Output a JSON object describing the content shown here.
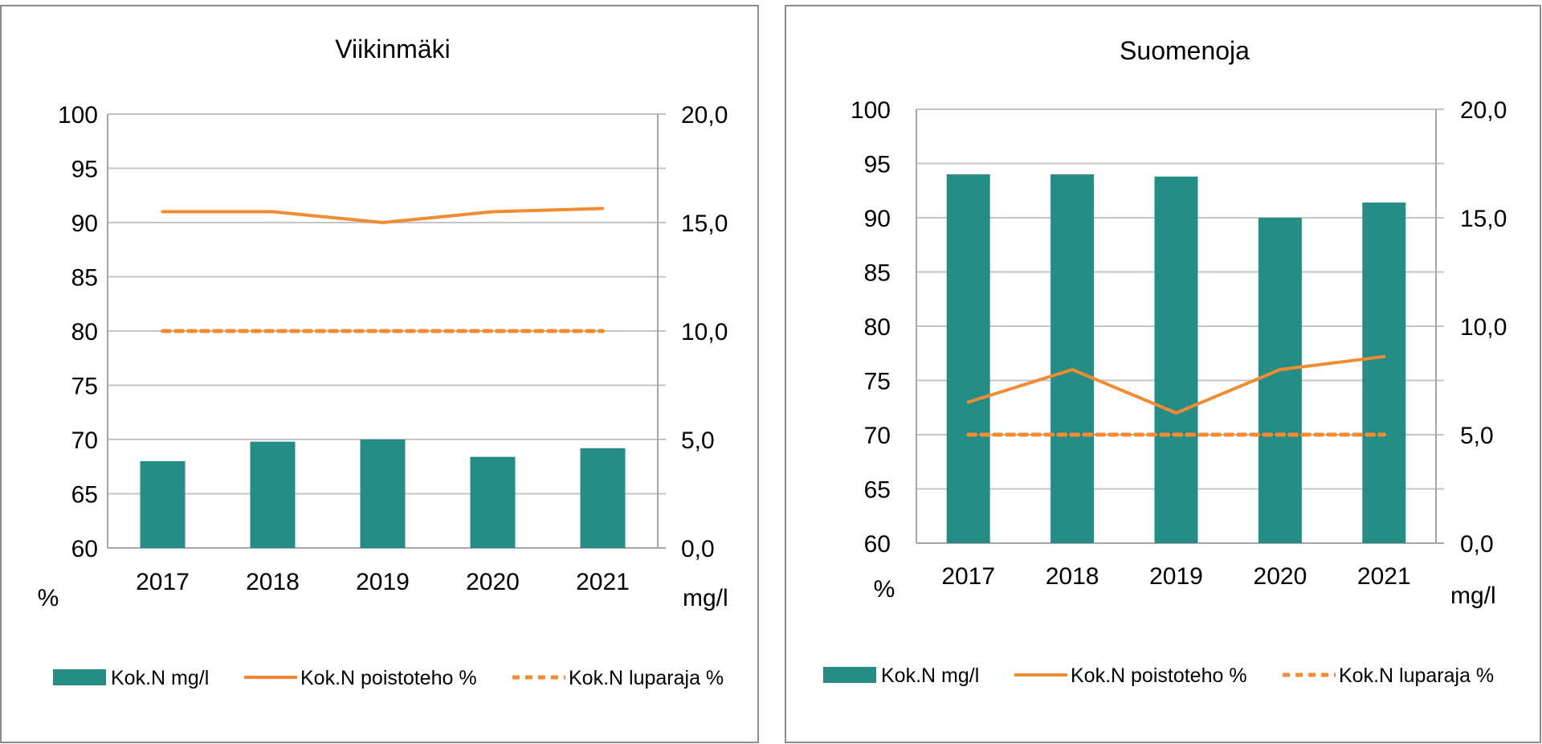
{
  "colors": {
    "bar": "#258c86",
    "line": "#f28c33",
    "grid": "#c4c4c4",
    "axis": "#a6a6a6"
  },
  "chart_data": [
    {
      "type": "bar+line",
      "title": "Viikinmäki",
      "categories": [
        "2017",
        "2018",
        "2019",
        "2020",
        "2021"
      ],
      "left_axis": {
        "label": "%",
        "range": [
          60,
          100
        ],
        "ticks": [
          "100",
          "95",
          "90",
          "85",
          "80",
          "75",
          "70",
          "65",
          "60"
        ],
        "tick_values": [
          100,
          95,
          90,
          85,
          80,
          75,
          70,
          65,
          60
        ]
      },
      "right_axis": {
        "label": "mg/l",
        "range": [
          0,
          20
        ],
        "ticks": [
          "20,0",
          "15,0",
          "10,0",
          "5,0",
          "0,0"
        ],
        "tick_values": [
          20,
          15,
          10,
          5,
          0
        ]
      },
      "grid": true,
      "legend_position": "bottom",
      "series": [
        {
          "name": "Kok.N mg/l",
          "kind": "bar",
          "axis": "right",
          "values": [
            4.0,
            4.9,
            5.0,
            4.2,
            4.6
          ]
        },
        {
          "name": "Kok.N poistoteho %",
          "kind": "line",
          "axis": "left",
          "values": [
            91.0,
            91.0,
            90.0,
            91.0,
            91.3
          ]
        },
        {
          "name": "Kok.N luparaja %",
          "kind": "dashed-line",
          "axis": "left",
          "values": [
            80,
            80,
            80,
            80,
            80
          ]
        }
      ]
    },
    {
      "type": "bar+line",
      "title": "Suomenoja",
      "categories": [
        "2017",
        "2018",
        "2019",
        "2020",
        "2021"
      ],
      "left_axis": {
        "label": "%",
        "range": [
          60,
          100
        ],
        "ticks": [
          "100",
          "95",
          "90",
          "85",
          "80",
          "75",
          "70",
          "65",
          "60"
        ],
        "tick_values": [
          100,
          95,
          90,
          85,
          80,
          75,
          70,
          65,
          60
        ]
      },
      "right_axis": {
        "label": "mg/l",
        "range": [
          0,
          20
        ],
        "ticks": [
          "20,0",
          "15,0",
          "10,0",
          "5,0",
          "0,0"
        ],
        "tick_values": [
          20,
          15,
          10,
          5,
          0
        ]
      },
      "grid": true,
      "legend_position": "bottom",
      "series": [
        {
          "name": "Kok.N mg/l",
          "kind": "bar",
          "axis": "right",
          "values": [
            17.0,
            17.0,
            16.9,
            15.0,
            15.7
          ]
        },
        {
          "name": "Kok.N poistoteho %",
          "kind": "line",
          "axis": "left",
          "values": [
            73.0,
            76.0,
            72.0,
            76.0,
            77.2
          ]
        },
        {
          "name": "Kok.N luparaja %",
          "kind": "dashed-line",
          "axis": "left",
          "values": [
            70,
            70,
            70,
            70,
            70
          ]
        }
      ]
    }
  ]
}
